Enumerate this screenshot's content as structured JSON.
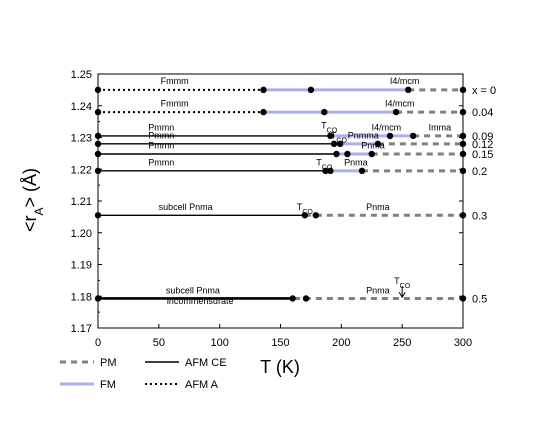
{
  "chart_data": {
    "type": "line",
    "xlabel": "T (K)",
    "ylabel": "<r_A> (Å)",
    "xlim": [
      0,
      300
    ],
    "ylim": [
      1.17,
      1.25
    ],
    "x_ticks": [
      "0",
      "50",
      "100",
      "150",
      "200",
      "250",
      "300"
    ],
    "y_ticks": [
      "1.17",
      "1.18",
      "1.19",
      "1.20",
      "1.21",
      "1.22",
      "1.23",
      "1.24",
      "1.25"
    ],
    "legend": [
      {
        "label": "PM",
        "style": "pm"
      },
      {
        "label": "AFM CE",
        "style": "afmce"
      },
      {
        "label": "FM",
        "style": "fm"
      },
      {
        "label": "AFM A",
        "style": "afma"
      }
    ],
    "styles": {
      "pm": {
        "color": "#808080",
        "dash": "6,5",
        "width": 3
      },
      "fm": {
        "color": "#aab0ee",
        "dash": "",
        "width": 3
      },
      "afmce": {
        "color": "#000000",
        "dash": "",
        "width": 1.4
      },
      "afmce_thick": {
        "color": "#000000",
        "dash": "",
        "width": 2.6
      },
      "afma": {
        "color": "#000000",
        "dash": "2,3",
        "width": 2
      }
    },
    "rows": [
      {
        "x_label": "x = 0",
        "y": 1.245,
        "segments": [
          {
            "style": "afma",
            "x": [
              0,
              136
            ]
          },
          {
            "style": "afma",
            "x": [
              136,
              175
            ]
          },
          {
            "style": "fm",
            "x": [
              136,
              255
            ]
          },
          {
            "style": "pm",
            "x": [
              255,
              300
            ]
          }
        ],
        "points": [
          0,
          136,
          175,
          255,
          300
        ]
      },
      {
        "x_label": "0.04",
        "y": 1.238,
        "segments": [
          {
            "style": "afma",
            "x": [
              0,
              136
            ]
          },
          {
            "style": "afma",
            "x": [
              136,
              186
            ]
          },
          {
            "style": "fm",
            "x": [
              136,
              245
            ]
          },
          {
            "style": "pm",
            "x": [
              245,
              300
            ]
          }
        ],
        "points": [
          0,
          136,
          186,
          245,
          300
        ]
      },
      {
        "x_label": "0.09",
        "y": 1.2305,
        "segments": [
          {
            "style": "afmce",
            "x": [
              0,
              191
            ]
          },
          {
            "style": "fm",
            "x": [
              191,
              259
            ]
          },
          {
            "style": "pm",
            "x": [
              259,
              300
            ]
          }
        ],
        "points": [
          0,
          191,
          240,
          259,
          300
        ]
      },
      {
        "x_label": "0.12",
        "y": 1.228,
        "segments": [
          {
            "style": "afmce",
            "x": [
              0,
              194
            ]
          },
          {
            "style": "fm",
            "x": [
              194,
              230
            ]
          },
          {
            "style": "pm",
            "x": [
              230,
              300
            ]
          }
        ],
        "points": [
          0,
          194,
          199,
          230,
          300
        ]
      },
      {
        "x_label": "0.15",
        "y": 1.2248,
        "segments": [
          {
            "style": "afmce",
            "x": [
              0,
              196
            ]
          },
          {
            "style": "fm",
            "x": [
              196,
              225
            ]
          },
          {
            "style": "pm",
            "x": [
              225,
              300
            ]
          }
        ],
        "points": [
          0,
          196,
          205,
          225,
          300
        ]
      },
      {
        "x_label": "0.2",
        "y": 1.2195,
        "segments": [
          {
            "style": "afmce",
            "x": [
              0,
              187
            ]
          },
          {
            "style": "fm",
            "x": [
              187,
              217
            ]
          },
          {
            "style": "pm",
            "x": [
              217,
              300
            ]
          }
        ],
        "points": [
          0,
          187,
          191,
          217,
          300
        ]
      },
      {
        "x_label": "0.3",
        "y": 1.2055,
        "segments": [
          {
            "style": "afmce",
            "x": [
              0,
              170
            ]
          },
          {
            "style": "pm",
            "x": [
              170,
              300
            ]
          }
        ],
        "points": [
          0,
          170,
          179,
          300
        ]
      },
      {
        "x_label": "0.5",
        "y": 1.1793,
        "segments": [
          {
            "style": "afmce_thick",
            "x": [
              0,
              161
            ]
          },
          {
            "style": "pm",
            "x": [
              161,
              300
            ]
          }
        ],
        "points": [
          0,
          160,
          171,
          300
        ]
      }
    ],
    "labels": [
      {
        "text": "Fmmm",
        "x": 63,
        "y": 1.2468
      },
      {
        "text": "I4/mcm",
        "x": 252,
        "y": 1.2468
      },
      {
        "text": "Fmmm",
        "x": 63,
        "y": 1.2398
      },
      {
        "text": "I4/mcm",
        "x": 248,
        "y": 1.2398
      },
      {
        "text": "T",
        "x": 190,
        "y": 1.2328,
        "sub": "CO"
      },
      {
        "text": "I4/mcm",
        "x": 237,
        "y": 1.2322
      },
      {
        "text": "Imma",
        "x": 281,
        "y": 1.2322
      },
      {
        "text": "T",
        "x": 198,
        "y": 1.2297,
        "sub": "CO"
      },
      {
        "text": "Pnmma",
        "x": 218,
        "y": 1.2297
      },
      {
        "text": "Pmmn",
        "x": 52,
        "y": 1.2322
      },
      {
        "text": "Pmmn",
        "x": 52,
        "y": 1.2297
      },
      {
        "text": "Pmmn",
        "x": 52,
        "y": 1.2265
      },
      {
        "text": "Pnma",
        "x": 226,
        "y": 1.2265
      },
      {
        "text": "T",
        "x": 186,
        "y": 1.2212,
        "sub": "CO"
      },
      {
        "text": "Pnma",
        "x": 212,
        "y": 1.2212
      },
      {
        "text": "Pmmn",
        "x": 52,
        "y": 1.2212
      },
      {
        "text": "subcell Pnma",
        "x": 72,
        "y": 1.2072
      },
      {
        "text": "T",
        "x": 170,
        "y": 1.2072,
        "sub": "CO"
      },
      {
        "text": "Pnma",
        "x": 230,
        "y": 1.2072
      },
      {
        "text": "T",
        "x": 250,
        "y": 1.1838,
        "sub": "CO"
      },
      {
        "text": "subcell Pnma",
        "x": 78,
        "y": 1.1808
      },
      {
        "text": "Pnma",
        "x": 230,
        "y": 1.1808
      },
      {
        "text": "incommensurate",
        "x": 84,
        "y": 1.1775
      }
    ],
    "arrow": {
      "x": 250,
      "y_from": 1.1832,
      "y_to": 1.1797
    }
  }
}
